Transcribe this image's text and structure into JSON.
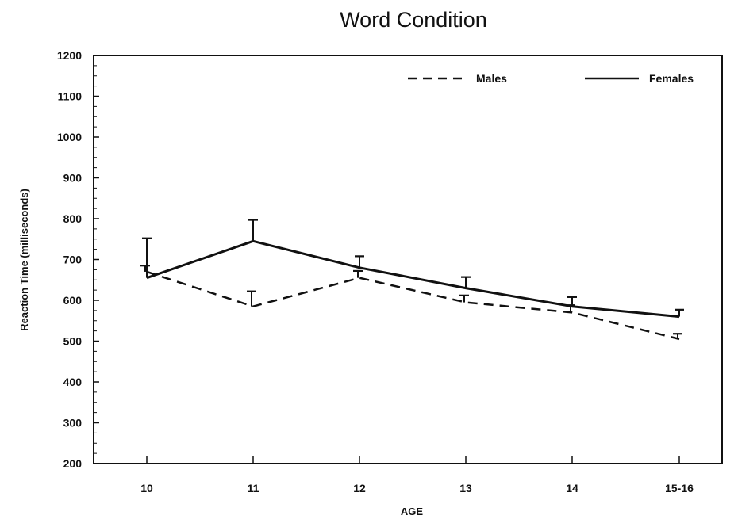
{
  "chart_data": {
    "type": "line",
    "title": "Word Condition",
    "xlabel": "AGE",
    "ylabel": "Reaction Time (milliseconds)",
    "categories": [
      "10",
      "11",
      "12",
      "13",
      "14",
      "15-16"
    ],
    "ylim": [
      200,
      1200
    ],
    "yticks": [
      200,
      300,
      400,
      500,
      600,
      700,
      800,
      900,
      1000,
      1100,
      1200
    ],
    "grid": false,
    "legend": "top-right",
    "series": [
      {
        "name": "Males",
        "style": "dashed",
        "color": "#111111",
        "values": [
          670,
          585,
          655,
          595,
          570,
          505
        ],
        "error_upper": [
          685,
          622,
          672,
          612,
          588,
          518
        ]
      },
      {
        "name": "Females",
        "style": "solid",
        "color": "#111111",
        "values": [
          655,
          745,
          680,
          630,
          585,
          560
        ],
        "error_upper": [
          752,
          797,
          708,
          657,
          608,
          577
        ]
      }
    ]
  }
}
